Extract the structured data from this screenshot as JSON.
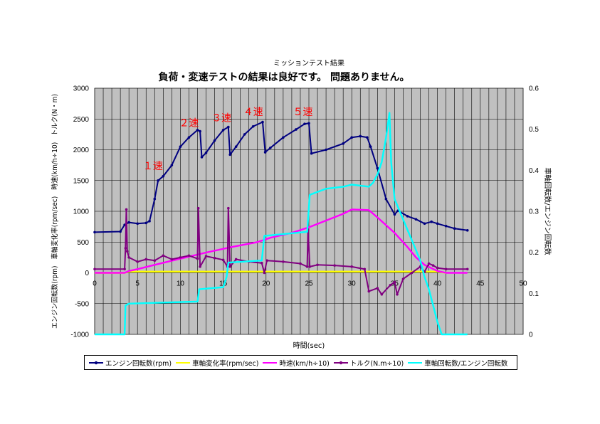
{
  "chart_data": {
    "type": "line",
    "title": "ミッションテスト結果",
    "subtitle": "負荷・変速テストの結果は良好です。 問題ありません。",
    "xlabel": "時間(sec)",
    "ylabel_left": "エンジン回転数(rpm)　車軸変化率(rpm/sec)　時速(km/h÷10)　トルク(N・m)",
    "ylabel_right": "車軸回転数/エンジン回転数",
    "xlim": [
      0,
      50
    ],
    "ylim_left": [
      -1000,
      3000
    ],
    "ylim_right": [
      0,
      0.6
    ],
    "x_ticks": [
      "0",
      "5",
      "10",
      "15",
      "20",
      "25",
      "30",
      "35",
      "40",
      "45",
      "50"
    ],
    "y_left_ticks": [
      "3000",
      "2500",
      "2000",
      "1500",
      "1000",
      "500",
      "0",
      "-500",
      "-1000"
    ],
    "y_right_ticks": [
      "0.6",
      "0.5",
      "0.4",
      "0.3",
      "0.2",
      "0.1",
      "0"
    ],
    "grid": true,
    "plot_bg": "#c0c0c0",
    "annotations": [
      {
        "text": "１速",
        "x": 6.8,
        "y": 1680
      },
      {
        "text": "２速",
        "x": 11.0,
        "y": 2380
      },
      {
        "text": "３速",
        "x": 14.8,
        "y": 2460
      },
      {
        "text": "４速",
        "x": 18.5,
        "y": 2560
      },
      {
        "text": "５速",
        "x": 24.3,
        "y": 2560
      }
    ],
    "annotation_color": "#ff0000",
    "series": [
      {
        "name": "エンジン回転数(rpm)",
        "axis": "left",
        "color": "#000080",
        "marker": true,
        "points": [
          [
            0,
            660
          ],
          [
            3,
            670
          ],
          [
            3.5,
            780
          ],
          [
            4,
            820
          ],
          [
            5,
            800
          ],
          [
            6,
            810
          ],
          [
            6.4,
            840
          ],
          [
            7,
            1200
          ],
          [
            7.4,
            1500
          ],
          [
            8,
            1570
          ],
          [
            9,
            1750
          ],
          [
            10,
            2050
          ],
          [
            11,
            2200
          ],
          [
            12,
            2320
          ],
          [
            12.3,
            2300
          ],
          [
            12.5,
            1880
          ],
          [
            13,
            1950
          ],
          [
            14,
            2150
          ],
          [
            15,
            2320
          ],
          [
            15.6,
            2370
          ],
          [
            15.8,
            1920
          ],
          [
            16.5,
            2050
          ],
          [
            17.5,
            2250
          ],
          [
            18.5,
            2380
          ],
          [
            19.6,
            2450
          ],
          [
            19.9,
            1960
          ],
          [
            20.5,
            2030
          ],
          [
            22,
            2200
          ],
          [
            23.5,
            2330
          ],
          [
            24.5,
            2420
          ],
          [
            25,
            2430
          ],
          [
            25.3,
            1940
          ],
          [
            27,
            2000
          ],
          [
            29,
            2100
          ],
          [
            30,
            2200
          ],
          [
            31,
            2220
          ],
          [
            31.8,
            2200
          ],
          [
            32.2,
            2050
          ],
          [
            33,
            1700
          ],
          [
            34,
            1200
          ],
          [
            35,
            950
          ],
          [
            35.4,
            1010
          ],
          [
            36.5,
            920
          ],
          [
            37.5,
            870
          ],
          [
            38.5,
            800
          ],
          [
            39.3,
            830
          ],
          [
            40,
            800
          ],
          [
            41,
            760
          ],
          [
            42,
            720
          ],
          [
            43.5,
            690
          ]
        ]
      },
      {
        "name": "車軸変化率(rpm/sec)",
        "axis": "left",
        "color": "#ffff00",
        "marker": false,
        "points": [
          [
            0,
            0
          ],
          [
            3.5,
            0
          ],
          [
            4,
            20
          ],
          [
            40,
            20
          ],
          [
            41,
            0
          ]
        ]
      },
      {
        "name": "時速(km/h÷10)",
        "axis": "left",
        "color": "#ff00ff",
        "marker": false,
        "points": [
          [
            0,
            0
          ],
          [
            3.5,
            0
          ],
          [
            4,
            30
          ],
          [
            5,
            60
          ],
          [
            7,
            130
          ],
          [
            10,
            230
          ],
          [
            13,
            330
          ],
          [
            16,
            420
          ],
          [
            19,
            500
          ],
          [
            20.5,
            570
          ],
          [
            23,
            650
          ],
          [
            25,
            740
          ],
          [
            27,
            850
          ],
          [
            29,
            960
          ],
          [
            30,
            1030
          ],
          [
            32,
            1020
          ],
          [
            33,
            900
          ],
          [
            35,
            650
          ],
          [
            36.5,
            420
          ],
          [
            37.5,
            250
          ],
          [
            38.5,
            130
          ],
          [
            40,
            30
          ],
          [
            41,
            0
          ],
          [
            43.5,
            0
          ]
        ]
      },
      {
        "name": "トルク(N.m÷10)",
        "axis": "left",
        "color": "#800080",
        "marker": true,
        "points": [
          [
            0,
            60
          ],
          [
            3.5,
            60
          ],
          [
            3.6,
            400
          ],
          [
            3.7,
            1030
          ],
          [
            3.8,
            350
          ],
          [
            4,
            250
          ],
          [
            5,
            180
          ],
          [
            6,
            220
          ],
          [
            7,
            200
          ],
          [
            8,
            280
          ],
          [
            9,
            220
          ],
          [
            10,
            250
          ],
          [
            11,
            280
          ],
          [
            12,
            230
          ],
          [
            12.1,
            1050
          ],
          [
            12.3,
            100
          ],
          [
            13,
            270
          ],
          [
            14,
            240
          ],
          [
            15,
            210
          ],
          [
            15.5,
            100
          ],
          [
            15.6,
            1050
          ],
          [
            15.8,
            100
          ],
          [
            16.5,
            220
          ],
          [
            18,
            180
          ],
          [
            19.5,
            160
          ],
          [
            19.8,
            0
          ],
          [
            20.1,
            200
          ],
          [
            22,
            180
          ],
          [
            24,
            150
          ],
          [
            24.8,
            100
          ],
          [
            24.9,
            700
          ],
          [
            25.1,
            100
          ],
          [
            26,
            130
          ],
          [
            28,
            120
          ],
          [
            30,
            100
          ],
          [
            31.5,
            60
          ],
          [
            32,
            -300
          ],
          [
            33,
            -250
          ],
          [
            33.5,
            -350
          ],
          [
            34.5,
            -200
          ],
          [
            35,
            -150
          ],
          [
            35.3,
            -350
          ],
          [
            36,
            -100
          ],
          [
            37,
            0
          ],
          [
            38,
            100
          ],
          [
            38.5,
            20
          ],
          [
            39,
            150
          ],
          [
            39.5,
            120
          ],
          [
            40,
            80
          ],
          [
            41,
            60
          ],
          [
            43.5,
            60
          ]
        ]
      },
      {
        "name": "車軸回転数/エンジン回転数",
        "axis": "right",
        "color": "#00ffff",
        "marker": false,
        "points": [
          [
            0,
            0
          ],
          [
            3.5,
            0
          ],
          [
            3.6,
            0.07
          ],
          [
            4,
            0.075
          ],
          [
            12,
            0.08
          ],
          [
            12.2,
            0.11
          ],
          [
            15,
            0.115
          ],
          [
            15.4,
            0.14
          ],
          [
            15.6,
            0.175
          ],
          [
            19.5,
            0.18
          ],
          [
            19.8,
            0.24
          ],
          [
            24.8,
            0.25
          ],
          [
            25.1,
            0.34
          ],
          [
            27,
            0.355
          ],
          [
            29,
            0.36
          ],
          [
            30,
            0.365
          ],
          [
            32,
            0.36
          ],
          [
            32.5,
            0.37
          ],
          [
            33,
            0.39
          ],
          [
            33.5,
            0.42
          ],
          [
            34,
            0.48
          ],
          [
            34.4,
            0.54
          ],
          [
            34.6,
            0.42
          ],
          [
            35,
            0.33
          ],
          [
            36,
            0.28
          ],
          [
            37,
            0.23
          ],
          [
            38,
            0.18
          ],
          [
            38.5,
            0.14
          ],
          [
            39,
            0.11
          ],
          [
            39.5,
            0.07
          ],
          [
            40,
            0.03
          ],
          [
            40.5,
            0
          ],
          [
            43.5,
            0
          ]
        ]
      }
    ]
  }
}
